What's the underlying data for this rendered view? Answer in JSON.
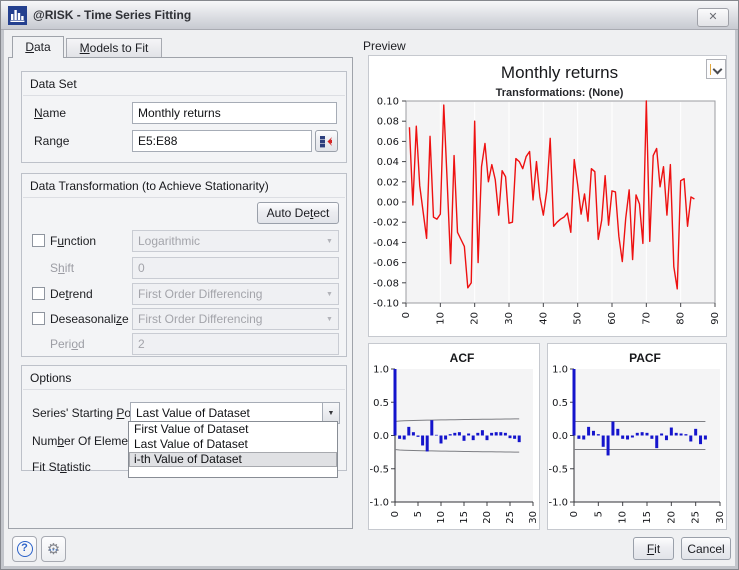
{
  "window": {
    "title": "@RISK - Time Series Fitting"
  },
  "icons": {
    "close": "✕",
    "combo_arrow": "▼",
    "help": "?",
    "gear": "⚙",
    "gear_dots": "···"
  },
  "tabs": {
    "data": "[D]ata",
    "models": "[M]odels to Fit"
  },
  "panel": {
    "data_set": {
      "title": "Data Set",
      "name_label": "[N]ame",
      "name_value": "Monthly returns",
      "range_label": "Ran[g]e",
      "range_value": "E5:E88"
    },
    "transform": {
      "title": "Data Transformation (to Achieve Stationarity)",
      "auto_detect": "Auto De[t]ect",
      "function_label": "F[u]nction",
      "function_value": "Logarithmic",
      "shift_label": "S[h]ift",
      "shift_value": "0",
      "detrend_label": "De[t]rend",
      "detrend_value": "First Order Differencing",
      "deseason_label": "Deseasonali[z]e",
      "deseason_value": "First Order Differencing",
      "period_label": "Peri[o]d",
      "period_value": "2"
    },
    "options": {
      "title": "Options",
      "starting_label": "Series' Starting [P]oint",
      "starting_value": "Last Value of Dataset",
      "elements_label": "Num[b]er Of Elements",
      "statistic_label": "Fit St[a]tistic",
      "dropdown": {
        "items": [
          "First Value of Dataset",
          "Last Value of Dataset",
          "i-th Value of Dataset"
        ],
        "highlighted_index": 2
      }
    }
  },
  "preview": {
    "label": "Preview"
  },
  "footer": {
    "fit": "[F]it",
    "cancel": "Cancel"
  },
  "colors": {
    "series_line": "#ee1111",
    "acf_bar": "#1414cc",
    "accent_mark": "#e2a73e"
  },
  "chart_data": [
    {
      "type": "line",
      "title": "Monthly returns",
      "subtitle": "Transformations: (None)",
      "x_start": 1,
      "xlim": [
        0,
        90
      ],
      "xtick": 10,
      "ylim": [
        -0.1,
        0.1
      ],
      "ytick": 0.02,
      "grid": "vertical",
      "line_color": "#ee1111",
      "values": [
        0.074,
        -0.003,
        0.075,
        0.016,
        -0.01,
        -0.036,
        0.065,
        -0.015,
        -0.017,
        -0.012,
        0.096,
        0.02,
        -0.061,
        0.046,
        -0.03,
        -0.037,
        -0.044,
        -0.085,
        -0.08,
        0.08,
        -0.06,
        0.035,
        0.058,
        0.02,
        0.037,
        0.022,
        -0.013,
        0.031,
        0.025,
        -0.021,
        -0.02,
        0.043,
        0.04,
        0.033,
        0.045,
        0.05,
        0.002,
        0.04,
        0.005,
        -0.013,
        0.011,
        0.063,
        -0.024,
        -0.02,
        -0.017,
        -0.015,
        -0.011,
        -0.03,
        0.042,
        0.017,
        -0.012,
        0.008,
        -0.019,
        0.033,
        0.03,
        -0.037,
        -0.018,
        0.026,
        -0.023,
        0.011,
        0.01,
        -0.034,
        -0.059,
        -0.016,
        0.012,
        -0.057,
        0.007,
        -0.002,
        -0.041,
        0.1,
        -0.039,
        0.046,
        0.053,
        0.015,
        0.035,
        -0.013,
        0.037,
        -0.064,
        -0.086,
        0.021,
        0.023,
        -0.024,
        0.005,
        0.003
      ]
    },
    {
      "type": "bar",
      "title": "ACF",
      "xlim": [
        0,
        30
      ],
      "xtick": 5,
      "ylim": [
        -1.0,
        1.0
      ],
      "ytick": 0.5,
      "bar_color": "#1414cc",
      "conf_band": [
        0.21,
        0.25
      ],
      "values": [
        1.0,
        -0.05,
        -0.06,
        0.13,
        0.05,
        -0.02,
        -0.15,
        -0.24,
        0.23,
        0.01,
        -0.12,
        -0.06,
        0.02,
        0.04,
        0.05,
        -0.08,
        0.03,
        -0.07,
        0.04,
        0.08,
        -0.07,
        0.04,
        0.05,
        0.05,
        0.04,
        -0.04,
        -0.05,
        -0.1
      ]
    },
    {
      "type": "bar",
      "title": "PACF",
      "xlim": [
        0,
        30
      ],
      "xtick": 5,
      "ylim": [
        -1.0,
        1.0
      ],
      "ytick": 0.5,
      "bar_color": "#1414cc",
      "conf_band": [
        0.21,
        0.21
      ],
      "values": [
        1.0,
        -0.05,
        -0.06,
        0.13,
        0.07,
        0.02,
        -0.17,
        -0.3,
        0.21,
        0.1,
        -0.05,
        -0.06,
        -0.03,
        0.04,
        0.05,
        0.04,
        -0.05,
        -0.19,
        0.03,
        -0.07,
        0.12,
        0.04,
        0.03,
        0.02,
        -0.09,
        0.1,
        -0.13,
        -0.06
      ]
    }
  ]
}
